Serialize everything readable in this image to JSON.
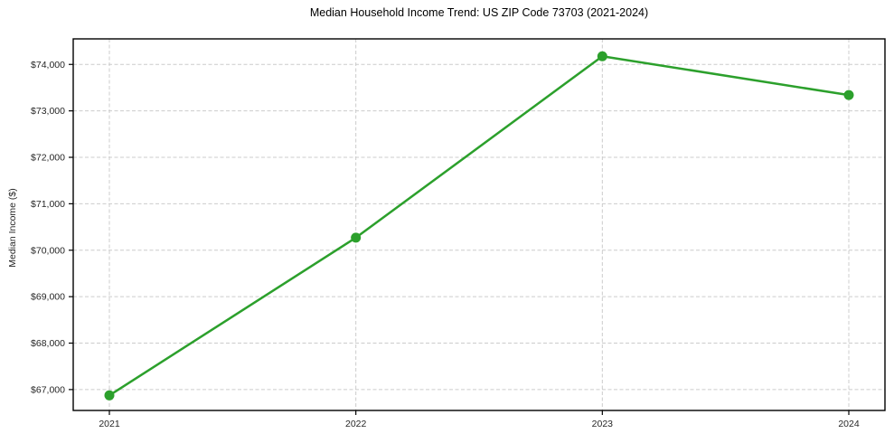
{
  "figure": {
    "title": "Median Household Income Trend: US ZIP Code 73703 (2021-2024)",
    "ylabel": "Median Income ($)"
  },
  "chart_data": {
    "type": "line",
    "title": "Median Household Income Trend: US ZIP Code 73703 (2021-2024)",
    "xlabel": "",
    "ylabel": "Median Income ($)",
    "categories": [
      "2021",
      "2022",
      "2023",
      "2024"
    ],
    "series": [
      {
        "name": "Median Household Income",
        "values": [
          66875,
          70270,
          74175,
          73340
        ]
      }
    ],
    "ytick_values": [
      67000,
      68000,
      69000,
      70000,
      71000,
      72000,
      73000,
      74000
    ],
    "ytick_labels": [
      "$67,000",
      "$68,000",
      "$69,000",
      "$70,000",
      "$71,000",
      "$72,000",
      "$73,000",
      "$74,000"
    ],
    "ylim": [
      66550,
      74550
    ],
    "grid": true,
    "grid_style": "dashed",
    "legend": "none",
    "colors": {
      "line": "#2ca02c",
      "marker": "#2ca02c",
      "grid": "#cccccc",
      "axis_border": "#000000",
      "tick_text": "#262626",
      "title_text": "#000000",
      "background": "#ffffff"
    }
  }
}
